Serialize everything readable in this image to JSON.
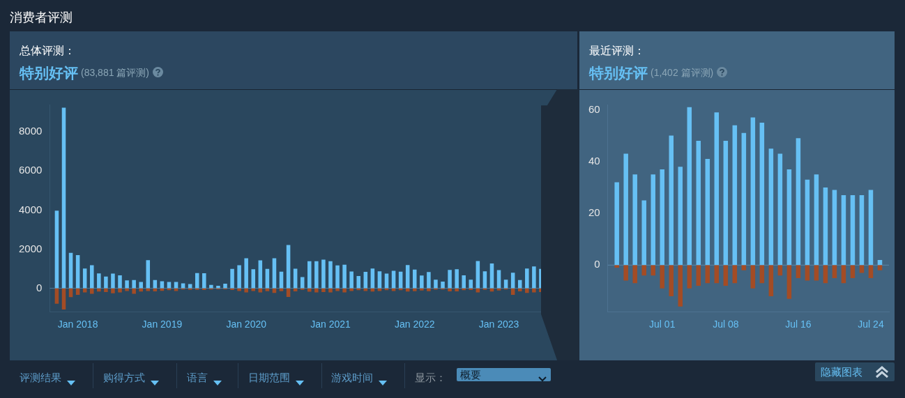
{
  "chart_data": [
    {
      "type": "other",
      "title": "消费者评测",
      "annotations": [
        "评测结果",
        "购得方式",
        "语言",
        "日期范围",
        "游戏时间",
        "显示：",
        "概要",
        "隐藏图表"
      ]
    },
    {
      "type": "bar",
      "title": "总体评测：",
      "subtitle": "特别好评",
      "annotations": [
        "(83,881 篇评测)"
      ],
      "stacked": true,
      "grid": false,
      "legend": false,
      "x": [
        "2017-10",
        "2017-11",
        "2017-12",
        "2018-01",
        "2018-02",
        "2018-03",
        "2018-04",
        "2018-05",
        "2018-06",
        "2018-07",
        "2018-08",
        "2018-09",
        "2018-10",
        "2018-11",
        "2018-12",
        "2019-01",
        "2019-02",
        "2019-03",
        "2019-04",
        "2019-05",
        "2019-06",
        "2019-07",
        "2019-08",
        "2019-09",
        "2019-10",
        "2019-11",
        "2019-12",
        "2020-01",
        "2020-02",
        "2020-03",
        "2020-04",
        "2020-05",
        "2020-06",
        "2020-07",
        "2020-08",
        "2020-09",
        "2020-10",
        "2020-11",
        "2020-12",
        "2021-01",
        "2021-02",
        "2021-03",
        "2021-04",
        "2021-05",
        "2021-06",
        "2021-07",
        "2021-08",
        "2021-09",
        "2021-10",
        "2021-11",
        "2021-12",
        "2022-01",
        "2022-02",
        "2022-03",
        "2022-04",
        "2022-05",
        "2022-06",
        "2022-07",
        "2022-08",
        "2022-09",
        "2022-10",
        "2022-11",
        "2022-12",
        "2023-01",
        "2023-02",
        "2023-03",
        "2023-04",
        "2023-05",
        "2023-06",
        "2023-07"
      ],
      "series": [
        {
          "color": "#66c0f4",
          "values": [
            3970,
            9240,
            1810,
            1700,
            1010,
            1180,
            760,
            600,
            750,
            660,
            400,
            420,
            320,
            1440,
            420,
            360,
            320,
            320,
            250,
            220,
            780,
            770,
            170,
            130,
            230,
            990,
            1180,
            1540,
            970,
            1430,
            990,
            1540,
            850,
            2210,
            1000,
            570,
            1380,
            1380,
            1460,
            1380,
            1170,
            1210,
            860,
            630,
            840,
            1010,
            870,
            750,
            890,
            850,
            1190,
            960,
            650,
            830,
            440,
            340,
            940,
            970,
            660,
            440,
            1390,
            870,
            1270,
            930,
            440,
            800,
            420,
            1010,
            1120,
            990
          ]
        },
        {
          "color": "#a34c25",
          "values": [
            -790,
            -1090,
            -450,
            -340,
            -210,
            -280,
            -170,
            -190,
            -260,
            -210,
            -140,
            -280,
            -170,
            -140,
            -160,
            -130,
            -100,
            -140,
            -60,
            -80,
            -80,
            -90,
            -60,
            -50,
            -50,
            -90,
            -140,
            -210,
            -140,
            -210,
            -150,
            -240,
            -150,
            -440,
            -160,
            -80,
            -180,
            -210,
            -190,
            -210,
            -140,
            -210,
            -140,
            -100,
            -140,
            -170,
            -140,
            -100,
            -140,
            -100,
            -170,
            -150,
            -110,
            -150,
            -70,
            -60,
            -160,
            -160,
            -100,
            -90,
            -210,
            -80,
            -170,
            -110,
            -60,
            -340,
            -160,
            -240,
            -210,
            -190
          ]
        }
      ],
      "xlim": [
        "2017-09",
        "2023-08"
      ],
      "xticks": [
        {
          "value": "2018-01",
          "label": "Jan 2018"
        },
        {
          "value": "2019-01",
          "label": "Jan 2019"
        },
        {
          "value": "2020-01",
          "label": "Jan 2020"
        },
        {
          "value": "2021-01",
          "label": "Jan 2021"
        },
        {
          "value": "2022-01",
          "label": "Jan 2022"
        },
        {
          "value": "2023-01",
          "label": "Jan 2023"
        }
      ],
      "ylim": [
        -1200,
        9400
      ],
      "yticks": [
        0,
        2000,
        4000,
        6000,
        8000
      ],
      "ref_lines": [
        {
          "axis": "y",
          "value": 0,
          "color": "#4b7a9a"
        }
      ]
    },
    {
      "type": "bar",
      "title": "最近评测：",
      "subtitle": "特别好评",
      "annotations": [
        "(1,402 篇评测)"
      ],
      "stacked": true,
      "grid": false,
      "legend": false,
      "x": [
        "--06-26",
        "--06-27",
        "--06-28",
        "--06-29",
        "--06-30",
        "--07-01",
        "--07-02",
        "--07-03",
        "--07-04",
        "--07-05",
        "--07-06",
        "--07-07",
        "--07-08",
        "--07-09",
        "--07-10",
        "--07-11",
        "--07-12",
        "--07-13",
        "--07-14",
        "--07-15",
        "--07-16",
        "--07-17",
        "--07-18",
        "--07-19",
        "--07-20",
        "--07-21",
        "--07-22",
        "--07-23",
        "--07-24",
        "--07-25"
      ],
      "series": [
        {
          "color": "#66c0f4",
          "values": [
            32,
            43,
            35,
            25,
            35,
            37,
            50,
            38,
            61,
            48,
            41,
            59,
            48,
            54,
            51,
            57,
            55,
            45,
            43,
            37,
            49,
            33,
            35,
            30,
            29,
            27,
            27,
            27,
            29,
            2
          ]
        },
        {
          "color": "#a34c25",
          "values": [
            -1,
            -6,
            -7,
            -4,
            -4,
            -9,
            -12,
            -16,
            -9,
            -8,
            -7,
            -7,
            -8,
            -7,
            -2,
            -9,
            -7,
            -12,
            -4,
            -13,
            -5,
            -6,
            -6,
            -7,
            -5,
            -7,
            -5,
            -3,
            -5,
            -2
          ]
        }
      ],
      "xlim": [
        "--06-25",
        "--07-26"
      ],
      "xticks": [
        {
          "value": "--07-01",
          "label": "Jul 01"
        },
        {
          "value": "--07-08",
          "label": "Jul 08"
        },
        {
          "value": "--07-16",
          "label": "Jul 16"
        },
        {
          "value": "--07-24",
          "label": "Jul 24"
        }
      ],
      "ylim": [
        -18,
        62
      ],
      "yticks": [
        0,
        20,
        40,
        60
      ],
      "ref_lines": [
        {
          "axis": "y",
          "value": 0,
          "color": "#5a86a6"
        }
      ]
    }
  ]
}
